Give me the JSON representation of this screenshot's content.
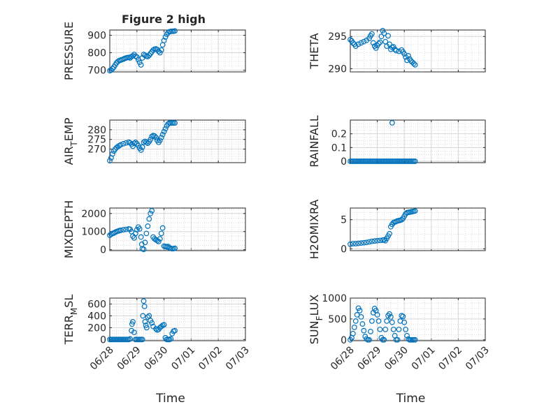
{
  "chart_data": [
    {
      "type": "scatter",
      "title": "Figure 2 high",
      "ylabel": "PRESSURE",
      "ylim": [
        690,
        930
      ],
      "yticks": [
        700,
        800,
        900
      ],
      "xlabel": "",
      "x_ticks": [
        "06/28",
        "06/29",
        "06/30",
        "07/01",
        "07/02",
        "07/03"
      ],
      "points": [
        [
          0,
          697
        ],
        [
          0.05,
          700
        ],
        [
          0.1,
          708
        ],
        [
          0.15,
          718
        ],
        [
          0.2,
          730
        ],
        [
          0.25,
          742
        ],
        [
          0.3,
          750
        ],
        [
          0.35,
          755
        ],
        [
          0.4,
          758
        ],
        [
          0.45,
          760
        ],
        [
          0.5,
          763
        ],
        [
          0.55,
          767
        ],
        [
          0.6,
          770
        ],
        [
          0.65,
          772
        ],
        [
          0.7,
          773
        ],
        [
          0.75,
          770
        ],
        [
          0.8,
          778
        ],
        [
          0.85,
          782
        ],
        [
          0.9,
          790
        ],
        [
          0.95,
          780
        ],
        [
          1.0,
          775
        ],
        [
          1.05,
          760
        ],
        [
          1.1,
          745
        ],
        [
          1.15,
          730
        ],
        [
          1.2,
          770
        ],
        [
          1.25,
          790
        ],
        [
          1.3,
          785
        ],
        [
          1.35,
          780
        ],
        [
          1.4,
          778
        ],
        [
          1.45,
          785
        ],
        [
          1.5,
          795
        ],
        [
          1.55,
          805
        ],
        [
          1.6,
          815
        ],
        [
          1.65,
          820
        ],
        [
          1.7,
          822
        ],
        [
          1.75,
          818
        ],
        [
          1.8,
          808
        ],
        [
          1.85,
          800
        ],
        [
          1.9,
          815
        ],
        [
          1.95,
          845
        ],
        [
          2.0,
          870
        ],
        [
          2.05,
          890
        ],
        [
          2.1,
          905
        ],
        [
          2.15,
          915
        ],
        [
          2.2,
          920
        ],
        [
          2.25,
          922
        ],
        [
          2.3,
          923
        ],
        [
          2.35,
          923
        ],
        [
          2.4,
          925
        ]
      ],
      "grid": true
    },
    {
      "type": "scatter",
      "title": "",
      "ylabel": "THETA",
      "ylim": [
        289.5,
        296
      ],
      "yticks": [
        290,
        295
      ],
      "x_ticks": [
        "06/28",
        "06/29",
        "06/30",
        "07/01",
        "07/02",
        "07/03"
      ],
      "points": [
        [
          0,
          294.5
        ],
        [
          0.05,
          294.3
        ],
        [
          0.1,
          294.0
        ],
        [
          0.15,
          293.8
        ],
        [
          0.2,
          293.5
        ],
        [
          0.3,
          293.8
        ],
        [
          0.4,
          294.0
        ],
        [
          0.5,
          294.2
        ],
        [
          0.6,
          294.4
        ],
        [
          0.7,
          294.7
        ],
        [
          0.75,
          295.1
        ],
        [
          0.8,
          295.4
        ],
        [
          0.85,
          294.0
        ],
        [
          0.9,
          293.5
        ],
        [
          0.95,
          293.2
        ],
        [
          1.0,
          293.6
        ],
        [
          1.05,
          293.9
        ],
        [
          1.1,
          294.1
        ],
        [
          1.15,
          295.0
        ],
        [
          1.2,
          295.9
        ],
        [
          1.25,
          295.5
        ],
        [
          1.3,
          294.2
        ],
        [
          1.35,
          293.5
        ],
        [
          1.4,
          295.1
        ],
        [
          1.45,
          293.8
        ],
        [
          1.5,
          293.0
        ],
        [
          1.55,
          293.3
        ],
        [
          1.6,
          293.4
        ],
        [
          1.65,
          293.0
        ],
        [
          1.7,
          292.8
        ],
        [
          1.8,
          292.7
        ],
        [
          1.9,
          292.9
        ],
        [
          1.95,
          292.6
        ],
        [
          2.0,
          292.3
        ],
        [
          2.05,
          291.8
        ],
        [
          2.1,
          291.3
        ],
        [
          2.15,
          292.0
        ],
        [
          2.2,
          291.5
        ],
        [
          2.25,
          291.2
        ],
        [
          2.3,
          291.0
        ],
        [
          2.35,
          290.8
        ],
        [
          2.4,
          290.6
        ]
      ],
      "grid": true
    },
    {
      "type": "scatter",
      "title": "",
      "ylabel": "AIR_TEMP",
      "ylim": [
        263,
        285
      ],
      "yticks": [
        270,
        275,
        280
      ],
      "x_ticks": [
        "06/28",
        "06/29",
        "06/30",
        "07/01",
        "07/02",
        "07/03"
      ],
      "points": [
        [
          0,
          264
        ],
        [
          0.05,
          265.5
        ],
        [
          0.1,
          267.5
        ],
        [
          0.15,
          269
        ],
        [
          0.2,
          270
        ],
        [
          0.25,
          270.8
        ],
        [
          0.3,
          271.3
        ],
        [
          0.35,
          271.8
        ],
        [
          0.4,
          272.2
        ],
        [
          0.5,
          272.8
        ],
        [
          0.6,
          273.2
        ],
        [
          0.7,
          273.6
        ],
        [
          0.75,
          273.2
        ],
        [
          0.8,
          272.5
        ],
        [
          0.85,
          271.5
        ],
        [
          0.9,
          273
        ],
        [
          0.95,
          273.5
        ],
        [
          1.0,
          272.8
        ],
        [
          1.05,
          271.8
        ],
        [
          1.1,
          270.5
        ],
        [
          1.15,
          269.5
        ],
        [
          1.2,
          271
        ],
        [
          1.25,
          273.5
        ],
        [
          1.3,
          274
        ],
        [
          1.35,
          273.5
        ],
        [
          1.4,
          273
        ],
        [
          1.45,
          273.8
        ],
        [
          1.5,
          275
        ],
        [
          1.55,
          276.5
        ],
        [
          1.6,
          277
        ],
        [
          1.65,
          276.8
        ],
        [
          1.7,
          276
        ],
        [
          1.75,
          274.5
        ],
        [
          1.8,
          273.5
        ],
        [
          1.85,
          274.5
        ],
        [
          1.9,
          276
        ],
        [
          1.95,
          277.5
        ],
        [
          2.0,
          279
        ],
        [
          2.05,
          280.5
        ],
        [
          2.1,
          282
        ],
        [
          2.15,
          283
        ],
        [
          2.2,
          283.5
        ],
        [
          2.25,
          283.5
        ],
        [
          2.3,
          283.5
        ],
        [
          2.35,
          283.5
        ],
        [
          2.4,
          283.5
        ]
      ],
      "grid": true
    },
    {
      "type": "scatter",
      "title": "",
      "ylabel": "RAINFALL",
      "ylim": [
        -0.01,
        0.3
      ],
      "yticks": [
        0,
        0.1,
        0.2
      ],
      "x_ticks": [
        "06/28",
        "06/29",
        "06/30",
        "07/01",
        "07/02",
        "07/03"
      ],
      "zero_from": 0,
      "zero_to": 2.4,
      "zero_step": 0.05,
      "spikes": [
        [
          1.55,
          0.28
        ]
      ],
      "grid": true
    },
    {
      "type": "scatter",
      "title": "",
      "ylabel": "MIXDEPTH",
      "ylim": [
        -50,
        2300
      ],
      "yticks": [
        0,
        1000,
        2000
      ],
      "x_ticks": [
        "06/28",
        "06/29",
        "06/30",
        "07/01",
        "07/02",
        "07/03"
      ],
      "points": [
        [
          0,
          800
        ],
        [
          0.05,
          850
        ],
        [
          0.1,
          900
        ],
        [
          0.15,
          920
        ],
        [
          0.2,
          960
        ],
        [
          0.25,
          1000
        ],
        [
          0.3,
          1030
        ],
        [
          0.35,
          1050
        ],
        [
          0.4,
          1070
        ],
        [
          0.5,
          1100
        ],
        [
          0.6,
          1120
        ],
        [
          0.7,
          1150
        ],
        [
          0.75,
          1130
        ],
        [
          0.8,
          1000
        ],
        [
          0.85,
          750
        ],
        [
          0.9,
          650
        ],
        [
          0.95,
          900
        ],
        [
          1.0,
          1100
        ],
        [
          1.05,
          1250
        ],
        [
          1.1,
          1150
        ],
        [
          1.15,
          700
        ],
        [
          1.18,
          300
        ],
        [
          1.2,
          50
        ],
        [
          1.25,
          20
        ],
        [
          1.3,
          400
        ],
        [
          1.35,
          900
        ],
        [
          1.4,
          1300
        ],
        [
          1.45,
          1700
        ],
        [
          1.5,
          2000
        ],
        [
          1.55,
          2150
        ],
        [
          1.6,
          700
        ],
        [
          1.65,
          600
        ],
        [
          1.7,
          550
        ],
        [
          1.75,
          500
        ],
        [
          1.8,
          450
        ],
        [
          1.85,
          600
        ],
        [
          1.9,
          900
        ],
        [
          1.95,
          1200
        ],
        [
          2.0,
          200
        ],
        [
          2.05,
          180
        ],
        [
          2.1,
          150
        ],
        [
          2.15,
          180
        ],
        [
          2.2,
          100
        ],
        [
          2.25,
          80
        ],
        [
          2.3,
          50
        ],
        [
          2.35,
          60
        ],
        [
          2.4,
          80
        ]
      ],
      "grid": true
    },
    {
      "type": "scatter",
      "title": "",
      "ylabel": "H2OMIXRA",
      "ylim": [
        -0.3,
        7
      ],
      "yticks": [
        0,
        5
      ],
      "x_ticks": [
        "06/28",
        "06/29",
        "06/30",
        "07/01",
        "07/02",
        "07/03"
      ],
      "points": [
        [
          0,
          0.8
        ],
        [
          0.1,
          0.9
        ],
        [
          0.2,
          0.9
        ],
        [
          0.3,
          0.95
        ],
        [
          0.4,
          1.0
        ],
        [
          0.5,
          1.05
        ],
        [
          0.6,
          1.1
        ],
        [
          0.7,
          1.2
        ],
        [
          0.8,
          1.3
        ],
        [
          0.9,
          1.35
        ],
        [
          1.0,
          1.4
        ],
        [
          1.1,
          1.45
        ],
        [
          1.2,
          1.5
        ],
        [
          1.25,
          1.55
        ],
        [
          1.3,
          1.4
        ],
        [
          1.35,
          1.8
        ],
        [
          1.4,
          2.2
        ],
        [
          1.45,
          2.6
        ],
        [
          1.5,
          3.8
        ],
        [
          1.55,
          4.2
        ],
        [
          1.6,
          4.5
        ],
        [
          1.65,
          4.6
        ],
        [
          1.7,
          4.7
        ],
        [
          1.75,
          4.8
        ],
        [
          1.8,
          4.85
        ],
        [
          1.85,
          4.9
        ],
        [
          1.9,
          5.0
        ],
        [
          1.95,
          5.2
        ],
        [
          2.0,
          5.6
        ],
        [
          2.05,
          6.0
        ],
        [
          2.1,
          6.2
        ],
        [
          2.15,
          6.25
        ],
        [
          2.2,
          6.3
        ],
        [
          2.25,
          6.35
        ],
        [
          2.3,
          6.4
        ],
        [
          2.35,
          6.45
        ],
        [
          2.4,
          6.5
        ]
      ],
      "grid": true
    },
    {
      "type": "scatter",
      "title": "",
      "ylabel": "TERR_MSL",
      "ylim": [
        -20,
        700
      ],
      "yticks": [
        0,
        200,
        400,
        600
      ],
      "x_ticks": [
        "06/28",
        "06/29",
        "06/30",
        "07/01",
        "07/02",
        "07/03"
      ],
      "points": [
        [
          0,
          0
        ],
        [
          0.05,
          0
        ],
        [
          0.1,
          0
        ],
        [
          0.15,
          0
        ],
        [
          0.2,
          0
        ],
        [
          0.25,
          0
        ],
        [
          0.3,
          0
        ],
        [
          0.35,
          0
        ],
        [
          0.4,
          0
        ],
        [
          0.45,
          0
        ],
        [
          0.5,
          0
        ],
        [
          0.55,
          0
        ],
        [
          0.6,
          0
        ],
        [
          0.65,
          0
        ],
        [
          0.7,
          0
        ],
        [
          0.75,
          10
        ],
        [
          0.8,
          150
        ],
        [
          0.82,
          260
        ],
        [
          0.85,
          300
        ],
        [
          0.9,
          120
        ],
        [
          0.95,
          0
        ],
        [
          1.0,
          0
        ],
        [
          1.05,
          0
        ],
        [
          1.1,
          0
        ],
        [
          1.15,
          0
        ],
        [
          1.2,
          0
        ],
        [
          1.22,
          400
        ],
        [
          1.25,
          650
        ],
        [
          1.28,
          560
        ],
        [
          1.3,
          300
        ],
        [
          1.33,
          240
        ],
        [
          1.36,
          200
        ],
        [
          1.4,
          380
        ],
        [
          1.45,
          400
        ],
        [
          1.5,
          320
        ],
        [
          1.55,
          280
        ],
        [
          1.6,
          220
        ],
        [
          1.7,
          180
        ],
        [
          1.75,
          160
        ],
        [
          1.8,
          170
        ],
        [
          1.85,
          200
        ],
        [
          1.9,
          220
        ],
        [
          1.95,
          240
        ],
        [
          2.0,
          250
        ],
        [
          2.05,
          30
        ],
        [
          2.1,
          0
        ],
        [
          2.15,
          0
        ],
        [
          2.2,
          0
        ],
        [
          2.25,
          10
        ],
        [
          2.3,
          100
        ],
        [
          2.35,
          140
        ],
        [
          2.4,
          150
        ]
      ],
      "grid": true
    },
    {
      "type": "scatter",
      "title": "",
      "ylabel": "SUN_FLUX",
      "xlabel": "Time",
      "ylim": [
        -20,
        1000
      ],
      "yticks": [
        0,
        500,
        1000
      ],
      "x_ticks": [
        "06/28",
        "06/29",
        "06/30",
        "07/01",
        "07/02",
        "07/03"
      ],
      "points": [
        [
          0,
          0
        ],
        [
          0.05,
          50
        ],
        [
          0.1,
          150
        ],
        [
          0.15,
          300
        ],
        [
          0.2,
          450
        ],
        [
          0.25,
          600
        ],
        [
          0.3,
          760
        ],
        [
          0.35,
          700
        ],
        [
          0.4,
          550
        ],
        [
          0.45,
          380
        ],
        [
          0.5,
          220
        ],
        [
          0.55,
          80
        ],
        [
          0.6,
          20
        ],
        [
          0.65,
          0
        ],
        [
          0.7,
          0
        ],
        [
          0.75,
          200
        ],
        [
          0.8,
          450
        ],
        [
          0.85,
          650
        ],
        [
          0.9,
          750
        ],
        [
          0.95,
          700
        ],
        [
          1.0,
          600
        ],
        [
          1.05,
          450
        ],
        [
          1.1,
          250
        ],
        [
          1.15,
          50
        ],
        [
          1.2,
          0
        ],
        [
          1.25,
          0
        ],
        [
          1.3,
          250
        ],
        [
          1.35,
          450
        ],
        [
          1.4,
          580
        ],
        [
          1.45,
          620
        ],
        [
          1.5,
          550
        ],
        [
          1.55,
          420
        ],
        [
          1.6,
          250
        ],
        [
          1.65,
          100
        ],
        [
          1.7,
          0
        ],
        [
          1.75,
          0
        ],
        [
          1.8,
          250
        ],
        [
          1.85,
          450
        ],
        [
          1.9,
          580
        ],
        [
          1.95,
          560
        ],
        [
          2.0,
          420
        ],
        [
          2.05,
          250
        ],
        [
          2.1,
          100
        ],
        [
          2.15,
          20
        ],
        [
          2.2,
          0
        ],
        [
          2.25,
          0
        ],
        [
          2.3,
          0
        ],
        [
          2.35,
          0
        ],
        [
          2.4,
          0
        ]
      ],
      "grid": true
    }
  ]
}
